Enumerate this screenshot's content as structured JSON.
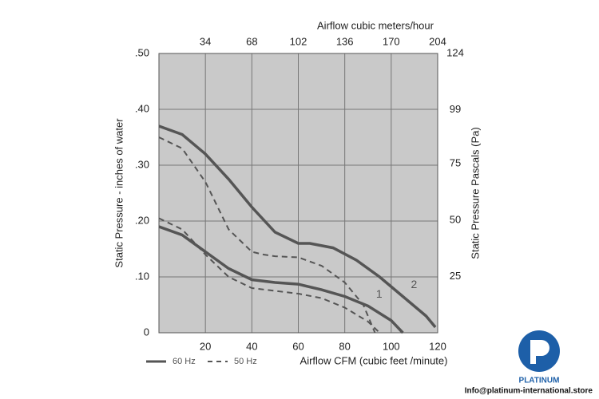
{
  "chart_data": {
    "type": "line",
    "x_label": "Airflow  CFM (cubic feet /minute)",
    "x2_label": "Airflow cubic meters/hour",
    "y_label": "Static Pressure - inches of water",
    "y2_label": "Static Pressure Pascals (Pa)",
    "xlim": [
      0,
      120
    ],
    "xticks": [
      20,
      40,
      60,
      80,
      100,
      120
    ],
    "x2lim": [
      0,
      204
    ],
    "x2ticks": [
      34,
      68,
      102,
      136,
      170,
      204
    ],
    "ylim": [
      0,
      0.5
    ],
    "yticks": [
      0,
      {
        "value": 0.1,
        "label": ".10"
      },
      {
        "value": 0.2,
        "label": ".20"
      },
      {
        "value": 0.3,
        "label": ".30"
      },
      {
        "value": 0.4,
        "label": ".40"
      },
      {
        "value": 0.5,
        "label": ".50"
      }
    ],
    "y2lim": [
      0,
      124
    ],
    "y2ticks": [
      25,
      50,
      75,
      99,
      124
    ],
    "grid": true,
    "series": [
      {
        "name": "60 Hz",
        "color": "#555555",
        "dash": false,
        "curves": [
          {
            "label": "2",
            "x": [
              0,
              10,
              20,
              30,
              40,
              50,
              60,
              65,
              75,
              85,
              95,
              105,
              115,
              119
            ],
            "values": [
              0.37,
              0.355,
              0.32,
              0.275,
              0.225,
              0.18,
              0.16,
              0.16,
              0.152,
              0.13,
              0.1,
              0.065,
              0.03,
              0.01
            ]
          },
          {
            "label": "1",
            "x": [
              0,
              10,
              20,
              30,
              40,
              50,
              60,
              70,
              80,
              90,
              100,
              105
            ],
            "values": [
              0.19,
              0.175,
              0.145,
              0.115,
              0.095,
              0.09,
              0.087,
              0.077,
              0.065,
              0.048,
              0.022,
              0
            ]
          }
        ]
      },
      {
        "name": "50 Hz",
        "color": "#555555",
        "dash": true,
        "curves": [
          {
            "x": [
              0,
              10,
              20,
              30,
              40,
              45,
              50,
              60,
              70,
              80,
              88,
              93
            ],
            "values": [
              0.35,
              0.33,
              0.27,
              0.185,
              0.145,
              0.14,
              0.137,
              0.135,
              0.12,
              0.09,
              0.05,
              0
            ]
          },
          {
            "x": [
              0,
              10,
              20,
              30,
              40,
              50,
              60,
              70,
              80,
              90,
              95
            ],
            "values": [
              0.205,
              0.185,
              0.14,
              0.1,
              0.08,
              0.075,
              0.07,
              0.062,
              0.045,
              0.02,
              0
            ]
          }
        ]
      }
    ]
  },
  "watermark": {
    "brand": "PLATINUM",
    "email": "Info@platinum-international.store"
  }
}
